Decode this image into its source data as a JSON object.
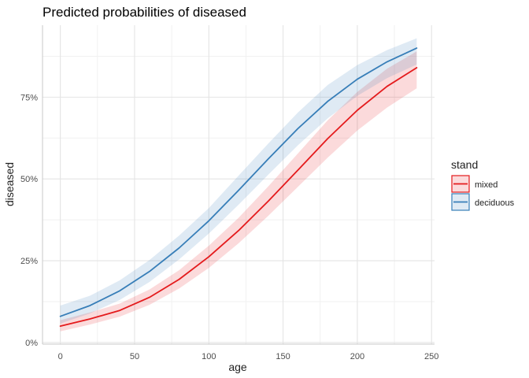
{
  "chart_data": {
    "type": "line",
    "title": "Predicted probabilities of diseased",
    "xlabel": "age",
    "ylabel": "diseased",
    "xlim": [
      -12,
      252
    ],
    "ylim": [
      -0.005,
      0.97
    ],
    "x_ticks": [
      0,
      50,
      100,
      150,
      200,
      250
    ],
    "x_tick_labels": [
      "0",
      "50",
      "100",
      "150",
      "200",
      "250"
    ],
    "y_ticks": [
      0,
      0.25,
      0.5,
      0.75
    ],
    "y_tick_labels": [
      "0%",
      "25%",
      "50%",
      "75%"
    ],
    "grid": true,
    "legend": {
      "title": "stand",
      "position": "right"
    },
    "x": [
      0,
      20,
      40,
      60,
      80,
      100,
      120,
      140,
      160,
      180,
      200,
      220,
      240
    ],
    "series": [
      {
        "name": "mixed",
        "color": "#e41a1c",
        "values": [
          0.05,
          0.072,
          0.098,
          0.138,
          0.193,
          0.262,
          0.342,
          0.432,
          0.527,
          0.623,
          0.71,
          0.783,
          0.84
        ],
        "lower": [
          0.034,
          0.055,
          0.079,
          0.115,
          0.165,
          0.228,
          0.303,
          0.387,
          0.476,
          0.565,
          0.648,
          0.718,
          0.777
        ],
        "upper": [
          0.068,
          0.092,
          0.119,
          0.162,
          0.221,
          0.296,
          0.381,
          0.477,
          0.578,
          0.679,
          0.766,
          0.837,
          0.89
        ]
      },
      {
        "name": "deciduous",
        "color": "#377eb8",
        "values": [
          0.08,
          0.113,
          0.158,
          0.217,
          0.289,
          0.372,
          0.465,
          0.561,
          0.654,
          0.737,
          0.805,
          0.858,
          0.9
        ],
        "lower": [
          0.058,
          0.089,
          0.13,
          0.185,
          0.254,
          0.333,
          0.421,
          0.513,
          0.603,
          0.685,
          0.754,
          0.808,
          0.85
        ],
        "upper": [
          0.113,
          0.143,
          0.19,
          0.252,
          0.327,
          0.411,
          0.51,
          0.608,
          0.703,
          0.787,
          0.848,
          0.894,
          0.93
        ]
      }
    ]
  }
}
